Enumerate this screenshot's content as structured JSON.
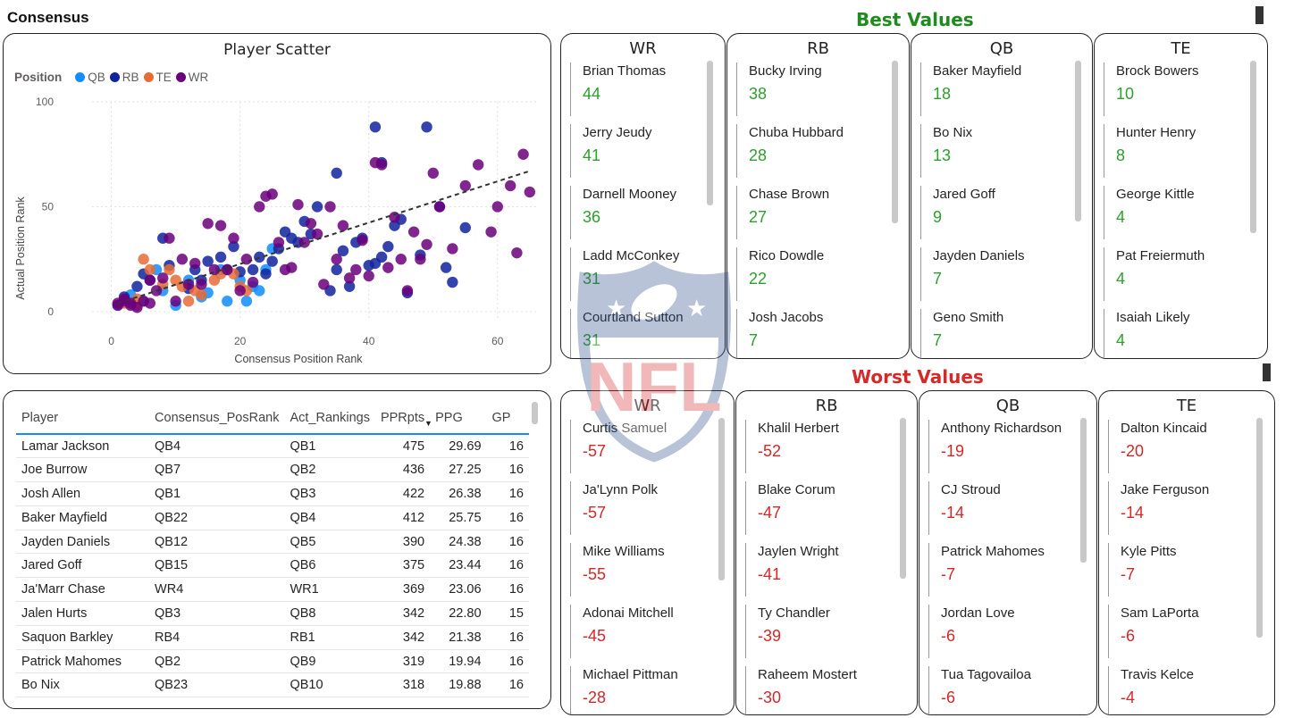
{
  "header": {
    "page_title": "Consensus"
  },
  "sections": {
    "best_title": "Best Values",
    "worst_title": "Worst Values"
  },
  "scatter": {
    "title": "Player Scatter",
    "legend_title": "Position",
    "xlabel": "Consensus Position Rank",
    "ylabel": "Actual Position Rank"
  },
  "chart_data": {
    "type": "scatter",
    "xlim": [
      -3,
      66
    ],
    "ylim": [
      -3,
      100
    ],
    "x_ticks": [
      0,
      20,
      40,
      60
    ],
    "y_ticks": [
      0,
      50,
      100
    ],
    "grid": true,
    "legend_position": "top-left",
    "trendline": {
      "x": [
        1,
        65
      ],
      "y": [
        4,
        67
      ]
    },
    "series": [
      {
        "name": "QB",
        "color": "#118dff",
        "points": [
          [
            1,
            3
          ],
          [
            3,
            8
          ],
          [
            5,
            5
          ],
          [
            7,
            20
          ],
          [
            8,
            10
          ],
          [
            10,
            3
          ],
          [
            12,
            15
          ],
          [
            15,
            9
          ],
          [
            17,
            20
          ],
          [
            20,
            15
          ],
          [
            22,
            12
          ],
          [
            23,
            10
          ],
          [
            24,
            20
          ],
          [
            25,
            30
          ],
          [
            18,
            5
          ],
          [
            21,
            5
          ],
          [
            14,
            7
          ]
        ]
      },
      {
        "name": "RB",
        "color": "#12239e",
        "points": [
          [
            2,
            7
          ],
          [
            4,
            12
          ],
          [
            5,
            18
          ],
          [
            6,
            15
          ],
          [
            8,
            35
          ],
          [
            9,
            22
          ],
          [
            12,
            11
          ],
          [
            13,
            20
          ],
          [
            14,
            15
          ],
          [
            15,
            24
          ],
          [
            17,
            26
          ],
          [
            18,
            20
          ],
          [
            19,
            31
          ],
          [
            20,
            19
          ],
          [
            22,
            20
          ],
          [
            23,
            26
          ],
          [
            24,
            18
          ],
          [
            25,
            24
          ],
          [
            26,
            30
          ],
          [
            27,
            38
          ],
          [
            28,
            35
          ],
          [
            29,
            33
          ],
          [
            30,
            43
          ],
          [
            31,
            37
          ],
          [
            32,
            50
          ],
          [
            34,
            10
          ],
          [
            35,
            20
          ],
          [
            36,
            29
          ],
          [
            37,
            12
          ],
          [
            38,
            33
          ],
          [
            39,
            35
          ],
          [
            40,
            22
          ],
          [
            41,
            23
          ],
          [
            42,
            26
          ],
          [
            43,
            31
          ],
          [
            44,
            41
          ],
          [
            45,
            44
          ],
          [
            46,
            9
          ],
          [
            48,
            27
          ],
          [
            49,
            88
          ],
          [
            51,
            50
          ],
          [
            52,
            21
          ],
          [
            53,
            14
          ],
          [
            55,
            40
          ],
          [
            41,
            88
          ],
          [
            42,
            71
          ],
          [
            35,
            66
          ]
        ]
      },
      {
        "name": "TE",
        "color": "#e66c37",
        "points": [
          [
            2,
            4
          ],
          [
            4,
            3
          ],
          [
            5,
            25
          ],
          [
            6,
            20
          ],
          [
            8,
            13
          ],
          [
            9,
            20
          ],
          [
            10,
            15
          ],
          [
            11,
            12
          ],
          [
            12,
            5
          ],
          [
            13,
            10
          ],
          [
            14,
            8
          ],
          [
            16,
            15
          ],
          [
            17,
            18
          ],
          [
            19,
            18
          ],
          [
            20,
            12
          ],
          [
            21,
            10
          ],
          [
            4,
            6
          ]
        ]
      },
      {
        "name": "WR",
        "color": "#6b007b",
        "points": [
          [
            1,
            3
          ],
          [
            2,
            5
          ],
          [
            3,
            3
          ],
          [
            4,
            2
          ],
          [
            5,
            5
          ],
          [
            6,
            15
          ],
          [
            7,
            10
          ],
          [
            8,
            16
          ],
          [
            9,
            35
          ],
          [
            10,
            5
          ],
          [
            11,
            25
          ],
          [
            12,
            13
          ],
          [
            13,
            23
          ],
          [
            14,
            13
          ],
          [
            15,
            42
          ],
          [
            16,
            20
          ],
          [
            17,
            41
          ],
          [
            18,
            20
          ],
          [
            19,
            35
          ],
          [
            20,
            10
          ],
          [
            21,
            25
          ],
          [
            22,
            14
          ],
          [
            23,
            50
          ],
          [
            24,
            55
          ],
          [
            25,
            56
          ],
          [
            26,
            33
          ],
          [
            27,
            20
          ],
          [
            28,
            21
          ],
          [
            29,
            51
          ],
          [
            30,
            33
          ],
          [
            31,
            42
          ],
          [
            32,
            37
          ],
          [
            33,
            13
          ],
          [
            34,
            50
          ],
          [
            35,
            25
          ],
          [
            36,
            41
          ],
          [
            37,
            16
          ],
          [
            38,
            20
          ],
          [
            39,
            34
          ],
          [
            40,
            17
          ],
          [
            41,
            71
          ],
          [
            42,
            70
          ],
          [
            43,
            21
          ],
          [
            44,
            45
          ],
          [
            45,
            25
          ],
          [
            46,
            10
          ],
          [
            47,
            38
          ],
          [
            48,
            25
          ],
          [
            49,
            32
          ],
          [
            50,
            66
          ],
          [
            51,
            50
          ],
          [
            53,
            30
          ],
          [
            55,
            60
          ],
          [
            57,
            70
          ],
          [
            59,
            38
          ],
          [
            60,
            50
          ],
          [
            62,
            60
          ],
          [
            63,
            28
          ],
          [
            64,
            75
          ],
          [
            65,
            57
          ],
          [
            1,
            4
          ],
          [
            2,
            6
          ],
          [
            3,
            4
          ],
          [
            6,
            4
          ]
        ]
      }
    ]
  },
  "table": {
    "columns": [
      "Player",
      "Consensus_PosRank",
      "Act_Rankings",
      "PPRpts",
      "PPG",
      "GP"
    ],
    "sort_column": "PPG",
    "rows": [
      [
        "Lamar Jackson",
        "QB4",
        "QB1",
        "475",
        "29.69",
        "16"
      ],
      [
        "Joe Burrow",
        "QB7",
        "QB2",
        "436",
        "27.25",
        "16"
      ],
      [
        "Josh Allen",
        "QB1",
        "QB3",
        "422",
        "26.38",
        "16"
      ],
      [
        "Baker Mayfield",
        "QB22",
        "QB4",
        "412",
        "25.75",
        "16"
      ],
      [
        "Jayden Daniels",
        "QB12",
        "QB5",
        "390",
        "24.38",
        "16"
      ],
      [
        "Jared Goff",
        "QB15",
        "QB6",
        "375",
        "23.44",
        "16"
      ],
      [
        "Ja'Marr Chase",
        "WR4",
        "WR1",
        "369",
        "23.06",
        "16"
      ],
      [
        "Jalen Hurts",
        "QB3",
        "QB8",
        "342",
        "22.80",
        "15"
      ],
      [
        "Saquon Barkley",
        "RB4",
        "RB1",
        "342",
        "21.38",
        "16"
      ],
      [
        "Patrick Mahomes",
        "QB2",
        "QB9",
        "319",
        "19.94",
        "16"
      ],
      [
        "Bo Nix",
        "QB23",
        "QB10",
        "318",
        "19.88",
        "16"
      ]
    ]
  },
  "best_values": [
    {
      "position": "WR",
      "items": [
        {
          "name": "Brian Thomas",
          "value": "44"
        },
        {
          "name": "Jerry Jeudy",
          "value": "41"
        },
        {
          "name": "Darnell Mooney",
          "value": "36"
        },
        {
          "name": "Ladd McConkey",
          "value": "31"
        },
        {
          "name": "Courtland Sutton",
          "value": "31"
        }
      ]
    },
    {
      "position": "RB",
      "items": [
        {
          "name": "Bucky Irving",
          "value": "38"
        },
        {
          "name": "Chuba Hubbard",
          "value": "28"
        },
        {
          "name": "Chase Brown",
          "value": "27"
        },
        {
          "name": "Rico Dowdle",
          "value": "22"
        },
        {
          "name": "Josh Jacobs",
          "value": "7"
        }
      ]
    },
    {
      "position": "QB",
      "items": [
        {
          "name": "Baker Mayfield",
          "value": "18"
        },
        {
          "name": "Bo Nix",
          "value": "13"
        },
        {
          "name": "Jared Goff",
          "value": "9"
        },
        {
          "name": "Jayden Daniels",
          "value": "7"
        },
        {
          "name": "Geno Smith",
          "value": "7"
        }
      ]
    },
    {
      "position": "TE",
      "items": [
        {
          "name": "Brock Bowers",
          "value": "10"
        },
        {
          "name": "Hunter Henry",
          "value": "8"
        },
        {
          "name": "George Kittle",
          "value": "4"
        },
        {
          "name": "Pat Freiermuth",
          "value": "4"
        },
        {
          "name": "Isaiah Likely",
          "value": "4"
        }
      ]
    }
  ],
  "worst_values": [
    {
      "position": "WR",
      "items": [
        {
          "name": "Curtis Samuel",
          "value": "-57"
        },
        {
          "name": "Ja'Lynn Polk",
          "value": "-57"
        },
        {
          "name": "Mike Williams",
          "value": "-55"
        },
        {
          "name": "Adonai Mitchell",
          "value": "-45"
        },
        {
          "name": "Michael Pittman",
          "value": "-28"
        }
      ]
    },
    {
      "position": "RB",
      "items": [
        {
          "name": "Khalil Herbert",
          "value": "-52"
        },
        {
          "name": "Blake Corum",
          "value": "-47"
        },
        {
          "name": "Jaylen Wright",
          "value": "-41"
        },
        {
          "name": "Ty Chandler",
          "value": "-39"
        },
        {
          "name": "Raheem Mostert",
          "value": "-30"
        }
      ]
    },
    {
      "position": "QB",
      "items": [
        {
          "name": "Anthony Richardson",
          "value": "-19"
        },
        {
          "name": "CJ Stroud",
          "value": "-14"
        },
        {
          "name": "Patrick Mahomes",
          "value": "-7"
        },
        {
          "name": "Jordan Love",
          "value": "-6"
        },
        {
          "name": "Tua Tagovailoa",
          "value": "-6"
        }
      ]
    },
    {
      "position": "TE",
      "items": [
        {
          "name": "Dalton Kincaid",
          "value": "-20"
        },
        {
          "name": "Jake Ferguson",
          "value": "-14"
        },
        {
          "name": "Kyle Pitts",
          "value": "-7"
        },
        {
          "name": "Sam LaPorta",
          "value": "-6"
        },
        {
          "name": "Travis Kelce",
          "value": "-4"
        }
      ]
    }
  ],
  "logo": {
    "text": "NFL"
  }
}
